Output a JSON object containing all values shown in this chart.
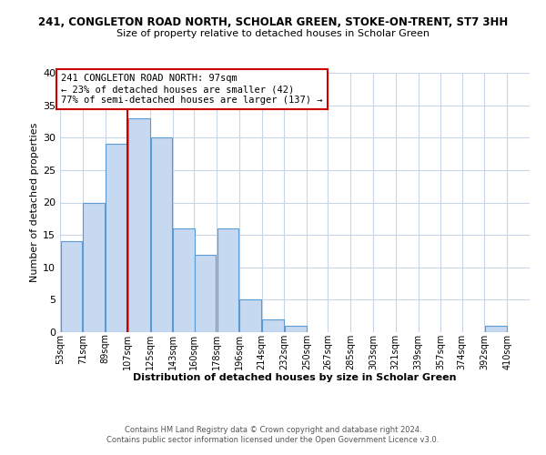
{
  "title_line1": "241, CONGLETON ROAD NORTH, SCHOLAR GREEN, STOKE-ON-TRENT, ST7 3HH",
  "title_line2": "Size of property relative to detached houses in Scholar Green",
  "xlabel": "Distribution of detached houses by size in Scholar Green",
  "ylabel": "Number of detached properties",
  "bin_labels": [
    "53sqm",
    "71sqm",
    "89sqm",
    "107sqm",
    "125sqm",
    "143sqm",
    "160sqm",
    "178sqm",
    "196sqm",
    "214sqm",
    "232sqm",
    "250sqm",
    "267sqm",
    "285sqm",
    "303sqm",
    "321sqm",
    "339sqm",
    "357sqm",
    "374sqm",
    "392sqm",
    "410sqm"
  ],
  "bar_values": [
    14,
    20,
    29,
    33,
    30,
    16,
    12,
    16,
    5,
    2,
    1,
    0,
    0,
    0,
    0,
    0,
    0,
    0,
    0,
    1,
    0
  ],
  "bar_color": "#c6d9f1",
  "bar_edge_color": "#5b9bd5",
  "vline_x_idx": 2,
  "bin_edges": [
    53,
    71,
    89,
    107,
    125,
    143,
    160,
    178,
    196,
    214,
    232,
    250,
    267,
    285,
    303,
    321,
    339,
    357,
    374,
    392,
    410
  ],
  "bin_width": 18,
  "ylim": [
    0,
    40
  ],
  "yticks": [
    0,
    5,
    10,
    15,
    20,
    25,
    30,
    35,
    40
  ],
  "annotation_title": "241 CONGLETON ROAD NORTH: 97sqm",
  "annotation_line2": "← 23% of detached houses are smaller (42)",
  "annotation_line3": "77% of semi-detached houses are larger (137) →",
  "annotation_box_color": "#ffffff",
  "annotation_box_edge": "#cc0000",
  "vline_color": "#cc0000",
  "footer_line1": "Contains HM Land Registry data © Crown copyright and database right 2024.",
  "footer_line2": "Contains public sector information licensed under the Open Government Licence v3.0.",
  "background_color": "#ffffff",
  "grid_color": "#c8d4e8"
}
